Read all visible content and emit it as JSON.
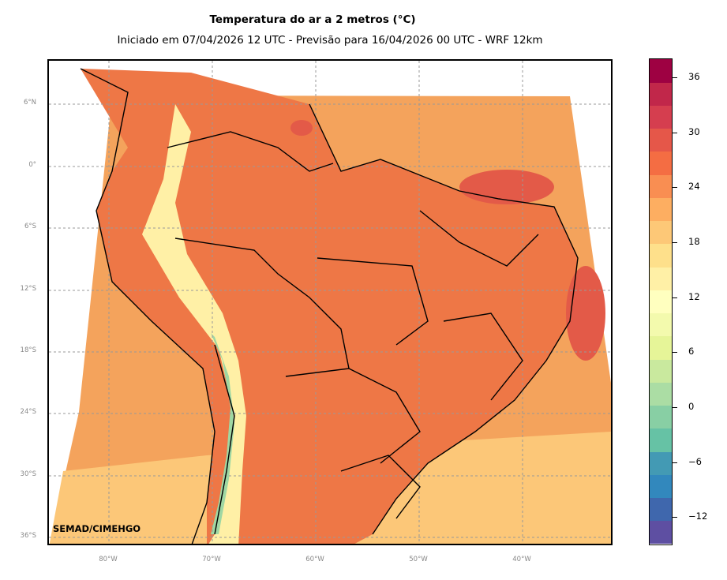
{
  "title": "Temperatura do ar a 2 metros (°C)",
  "subtitle": "Iniciado em 07/04/2026 12 UTC - Previsão para 16/04/2026 00 UTC - WRF 12km",
  "credit": "SEMAD/CIMEHGO",
  "lat_labels": [
    "6°N",
    "0°",
    "6°S",
    "12°S",
    "18°S",
    "24°S",
    "30°S",
    "36°S"
  ],
  "lon_labels": [
    "80°W",
    "70°W",
    "60°W",
    "50°W",
    "40°W"
  ],
  "colorbar": {
    "ticks": [
      "36",
      "30",
      "24",
      "18",
      "12",
      "6",
      "0",
      "−6",
      "−12"
    ],
    "colors": [
      "#5e4fa2",
      "#3f67ad",
      "#3288bd",
      "#439ab4",
      "#66c2a5",
      "#88cfa4",
      "#abdda4",
      "#c9e99e",
      "#e6f598",
      "#f3faad",
      "#ffffbf",
      "#fff0a6",
      "#fee08b",
      "#fdc877",
      "#fdae61",
      "#f98e52",
      "#f46d43",
      "#e55749",
      "#d53e4f",
      "#c1274a",
      "#9e0142"
    ],
    "range": [
      -15,
      38
    ]
  },
  "map_colors": {
    "ocean_warm": "#f4a35c",
    "ocean_south": "#fcc778",
    "land_hot": "#ee7746",
    "land_very_hot": "#e35a48",
    "andes_cool": "#fff0a6",
    "andes_cold": "#9fd7a3"
  }
}
